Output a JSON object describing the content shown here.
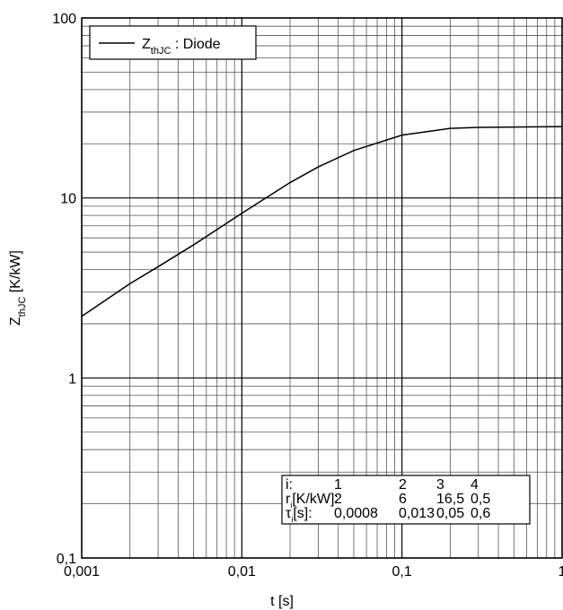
{
  "chart_data": {
    "type": "line",
    "xlabel": "t [s]",
    "ylabel": [
      "Z",
      "thJC",
      " [K/kW]"
    ],
    "xscale": "log",
    "yscale": "log",
    "grid": true,
    "legend": "upper left",
    "xlim": [
      0.001,
      1
    ],
    "ylim": [
      0.1,
      100
    ],
    "xticks": [
      {
        "value": 0.001,
        "label": "0,001"
      },
      {
        "value": 0.01,
        "label": "0,01"
      },
      {
        "value": 0.1,
        "label": "0,1"
      },
      1
    ],
    "yticks": [
      {
        "value": 0.1,
        "label": "0,1"
      },
      1,
      10,
      100
    ],
    "xminor": [
      0.002,
      0.003,
      0.004,
      0.005,
      0.006,
      0.007,
      0.008,
      0.009,
      0.02,
      0.03,
      0.04,
      0.05,
      0.06,
      0.07,
      0.08,
      0.09,
      0.2,
      0.3,
      0.4,
      0.5,
      0.6,
      0.7,
      0.8,
      0.9
    ],
    "yminor": [
      0.2,
      0.3,
      0.4,
      0.5,
      0.6,
      0.7,
      0.8,
      0.9,
      2,
      3,
      4,
      5,
      6,
      7,
      8,
      9,
      20,
      30,
      40,
      50,
      60,
      70,
      80,
      90
    ],
    "x": [
      0.001,
      0.002,
      0.003,
      0.005,
      0.01,
      0.02,
      0.03,
      0.05,
      0.1,
      0.2,
      0.3,
      0.5,
      1
    ],
    "series": [
      {
        "name": [
          "Z",
          "thJC",
          " : Diode"
        ],
        "color": "#000000",
        "values": [
          2.2,
          3.34,
          4.15,
          5.49,
          8.22,
          12.17,
          14.87,
          18.34,
          22.34,
          24.34,
          24.65,
          24.78,
          24.91
        ]
      }
    ],
    "table": {
      "rows": [
        [
          [
            "i:"
          ],
          "1",
          "2",
          "3",
          "4"
        ],
        [
          [
            "r",
            "i",
            "[K/kW]:"
          ],
          "2",
          "6",
          "16,5",
          "0,5"
        ],
        [
          [
            "τ",
            "i",
            "[s]:"
          ],
          "0,0008",
          "0,013",
          "0,05",
          "0,6"
        ]
      ]
    }
  }
}
